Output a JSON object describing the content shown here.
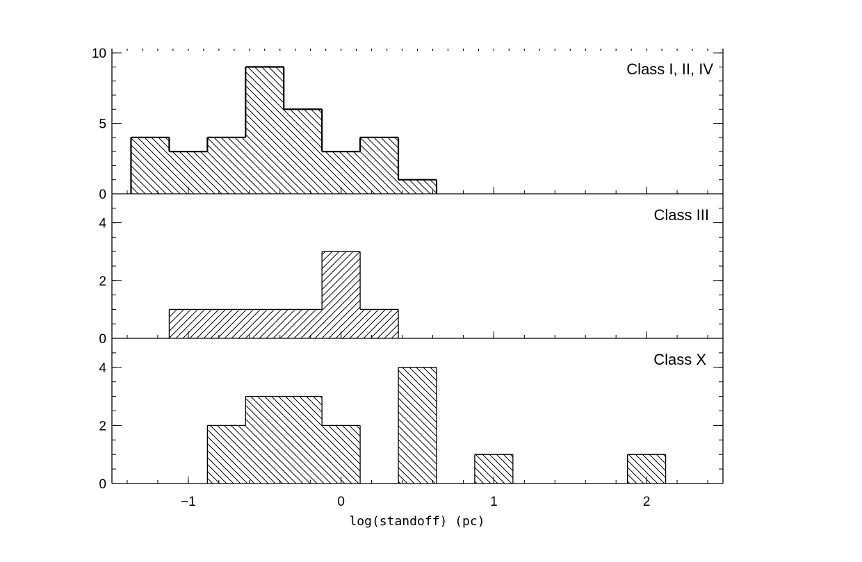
{
  "chart_data": [
    {
      "type": "bar",
      "panel": "top",
      "label": "Class I, II, IV",
      "bin_edges": [
        -1.375,
        -1.125,
        -0.875,
        -0.625,
        -0.375,
        -0.125,
        0.125,
        0.375,
        0.625
      ],
      "values": [
        4,
        3,
        4,
        9,
        6,
        3,
        4,
        1
      ],
      "ylim": [
        0,
        10
      ],
      "yticks": [
        "0",
        "5",
        "10"
      ],
      "hatch": "backslash",
      "outline": "bold"
    },
    {
      "type": "bar",
      "panel": "middle",
      "label": "Class III",
      "bin_edges": [
        -1.125,
        -0.875,
        -0.625,
        -0.375,
        -0.125,
        0.125,
        0.375
      ],
      "values": [
        1,
        1,
        1,
        1,
        3,
        1
      ],
      "ylim": [
        0,
        5
      ],
      "yticks": [
        "0",
        "2",
        "4"
      ],
      "hatch": "slash",
      "outline": "thin"
    },
    {
      "type": "bar",
      "panel": "bottom",
      "label": "Class X",
      "bin_edges": [
        -0.875,
        -0.625,
        -0.375,
        -0.125,
        0.125,
        0.375,
        0.625,
        0.875,
        1.125,
        1.375,
        1.625,
        1.875,
        2.125,
        2.375
      ],
      "values": [
        2,
        3,
        3,
        2,
        0,
        4,
        0,
        1,
        0,
        0,
        0,
        1,
        0
      ],
      "ylim": [
        0,
        5
      ],
      "yticks": [
        "0",
        "2",
        "4"
      ],
      "hatch": "backslash",
      "outline": "thin"
    }
  ],
  "x_axis": {
    "xlim": [
      -1.5,
      2.5
    ],
    "ticks": [
      -1,
      0,
      1,
      2
    ],
    "tick_labels": [
      "−1",
      "0",
      "1",
      "2"
    ],
    "xlabel": "log(standoff) (pc)"
  }
}
